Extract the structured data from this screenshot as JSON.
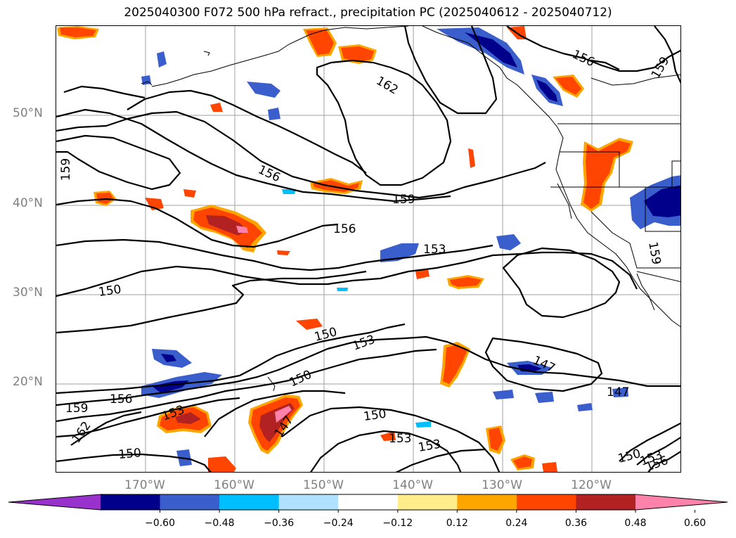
{
  "title": "2025040300 F072 500 hPa refract., precipitation PC (2025040612 - 2025040712)",
  "latitude_labels": [
    "50°N",
    "40°N",
    "30°N",
    "20°N"
  ],
  "longitude_labels": [
    "170°W",
    "160°W",
    "150°W",
    "140°W",
    "130°W",
    "120°W"
  ],
  "contour_labels": [
    "162",
    "156",
    "159",
    "159",
    "156",
    "159",
    "156",
    "153",
    "150",
    "150",
    "153",
    "150",
    "147",
    "147",
    "156",
    "159",
    "153",
    "162",
    "147",
    "150",
    "150",
    "153",
    "153",
    "150",
    "153",
    "156",
    "159"
  ],
  "colorbar": {
    "ticks": [
      "−0.60",
      "−0.48",
      "−0.36",
      "−0.24",
      "−0.12",
      "0.12",
      "0.24",
      "0.36",
      "0.48",
      "0.60"
    ],
    "colors": [
      "#9932cc",
      "#00008b",
      "#3a5fcd",
      "#00bfff",
      "#b0e2ff",
      "#ffffff",
      "#ffec8b",
      "#ffa500",
      "#ff4500",
      "#b22222",
      "#ff82ab"
    ]
  },
  "colors": {
    "contour": "#000000",
    "coastline": "#000000",
    "gridline": "#a0a0a0",
    "axis_label": "#808080"
  }
}
